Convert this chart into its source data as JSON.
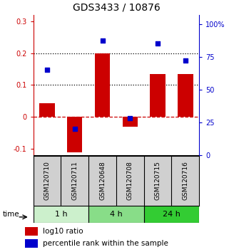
{
  "title": "GDS3433 / 10876",
  "samples": [
    "GSM120710",
    "GSM120711",
    "GSM120648",
    "GSM120708",
    "GSM120715",
    "GSM120716"
  ],
  "log10_ratio": [
    0.042,
    -0.112,
    0.2,
    -0.03,
    0.135,
    0.135
  ],
  "percentile_rank": [
    0.65,
    0.2,
    0.875,
    0.28,
    0.85,
    0.72
  ],
  "ylim_left": [
    -0.12,
    0.32
  ],
  "ylim_right": [
    0.0,
    1.0667
  ],
  "yticks_left": [
    -0.1,
    0.0,
    0.1,
    0.2,
    0.3
  ],
  "yticks_right": [
    0.0,
    0.25,
    0.5,
    0.75,
    1.0
  ],
  "ytick_labels_left": [
    "-0.1",
    "0",
    "0.1",
    "0.2",
    "0.3"
  ],
  "ytick_labels_right": [
    "0",
    "25",
    "50",
    "75",
    "100%"
  ],
  "hlines_dotted": [
    0.1,
    0.2
  ],
  "hline_dashed": 0.0,
  "bar_color": "#cc0000",
  "square_color": "#0000cc",
  "bar_width": 0.55,
  "groups": [
    {
      "label": "1 h",
      "samples_count": 2,
      "color": "#ccf0cc"
    },
    {
      "label": "4 h",
      "samples_count": 2,
      "color": "#88dd88"
    },
    {
      "label": "24 h",
      "samples_count": 2,
      "color": "#33cc33"
    }
  ],
  "time_label": "time",
  "legend_bar_label": "log10 ratio",
  "legend_square_label": "percentile rank within the sample",
  "title_fontsize": 10,
  "label_fontsize": 6.5,
  "tick_fontsize": 7,
  "group_label_fontsize": 8,
  "background_color": "#ffffff",
  "plot_bg_color": "#ffffff",
  "sample_box_color": "#d0d0d0"
}
